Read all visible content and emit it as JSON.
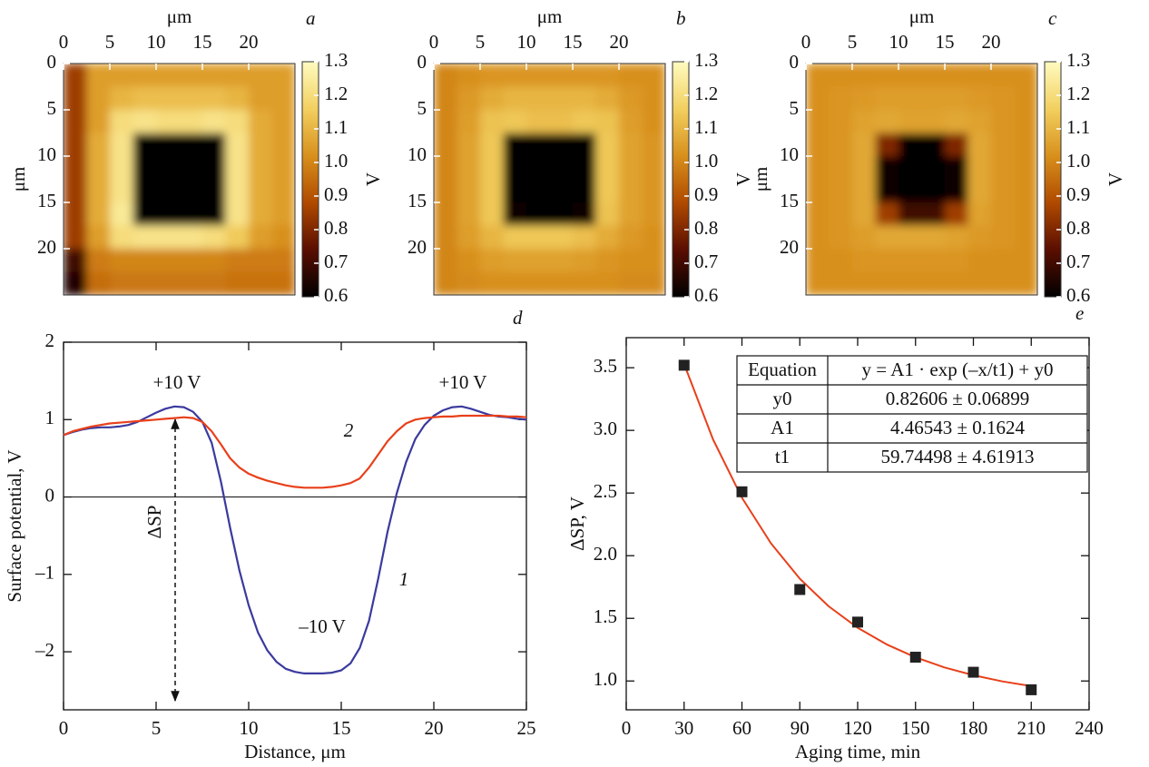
{
  "chart_data": [
    {
      "type": "heatmap",
      "panel": "a",
      "xlabel": "μm",
      "ylabel": "μm",
      "xlim": [
        0,
        25
      ],
      "ylim": [
        0,
        25
      ],
      "xticks": [
        0,
        5,
        10,
        15,
        20
      ],
      "yticks": [
        0,
        5,
        10,
        15,
        20
      ],
      "values": [
        [
          0.85,
          1.05,
          1.05,
          1.05,
          1.05,
          1.05,
          1.05,
          1.05,
          1.05,
          1.05
        ],
        [
          0.85,
          1.05,
          1.1,
          1.12,
          1.12,
          1.12,
          1.12,
          1.1,
          1.05,
          1.05
        ],
        [
          0.85,
          1.05,
          1.2,
          1.22,
          1.2,
          1.2,
          1.22,
          1.2,
          1.08,
          1.05
        ],
        [
          0.85,
          1.08,
          1.22,
          0.6,
          0.6,
          0.6,
          0.6,
          1.22,
          1.08,
          1.05
        ],
        [
          0.85,
          1.08,
          1.22,
          0.6,
          0.6,
          0.6,
          0.6,
          1.22,
          1.08,
          1.05
        ],
        [
          0.85,
          1.08,
          1.22,
          0.6,
          0.6,
          0.6,
          0.6,
          1.22,
          1.08,
          1.05
        ],
        [
          0.85,
          1.08,
          1.24,
          0.6,
          0.6,
          0.6,
          0.6,
          1.22,
          1.08,
          1.05
        ],
        [
          0.85,
          1.05,
          1.2,
          1.22,
          1.22,
          1.22,
          1.2,
          1.15,
          1.05,
          1.02
        ],
        [
          0.7,
          0.98,
          1.0,
          1.0,
          1.0,
          1.0,
          1.0,
          0.98,
          0.98,
          0.98
        ],
        [
          0.65,
          0.95,
          0.97,
          0.97,
          0.97,
          0.97,
          0.97,
          0.96,
          0.96,
          0.96
        ]
      ],
      "colormap": [
        "#000000",
        "#5a0e00",
        "#b04a00",
        "#d8901c",
        "#f2d060",
        "#fffbc0"
      ],
      "clim": [
        0.6,
        1.3
      ],
      "cticks": [
        {
          "value": 0.6,
          "label": "0.6"
        },
        0.7,
        0.8,
        0.9,
        {
          "value": 1,
          "label": "1.0"
        },
        1.1,
        1.2,
        1.3
      ],
      "clabel": "V"
    },
    {
      "type": "heatmap",
      "panel": "b",
      "xlabel": "μm",
      "xlim": [
        0,
        25
      ],
      "ylim": [
        0,
        25
      ],
      "xticks": [
        0,
        5,
        10,
        15,
        20
      ],
      "yticks": [
        0,
        5,
        10,
        15,
        20
      ],
      "values": [
        [
          1.0,
          1.02,
          1.03,
          1.03,
          1.03,
          1.03,
          1.03,
          1.03,
          1.02,
          1.02
        ],
        [
          1.0,
          1.04,
          1.08,
          1.1,
          1.1,
          1.1,
          1.1,
          1.08,
          1.04,
          1.02
        ],
        [
          1.0,
          1.05,
          1.13,
          1.14,
          1.12,
          1.12,
          1.14,
          1.13,
          1.05,
          1.02
        ],
        [
          1.0,
          1.06,
          1.14,
          0.6,
          0.6,
          0.6,
          0.6,
          1.14,
          1.06,
          1.03
        ],
        [
          1.0,
          1.06,
          1.14,
          0.6,
          0.6,
          0.6,
          0.6,
          1.14,
          1.06,
          1.03
        ],
        [
          1.0,
          1.06,
          1.14,
          0.6,
          0.6,
          0.6,
          0.6,
          1.14,
          1.06,
          1.03
        ],
        [
          1.0,
          1.06,
          1.14,
          0.62,
          0.6,
          0.6,
          0.62,
          1.13,
          1.06,
          1.03
        ],
        [
          1.0,
          1.05,
          1.1,
          1.14,
          1.14,
          1.14,
          1.12,
          1.08,
          1.04,
          1.02
        ],
        [
          1.0,
          1.02,
          1.05,
          1.06,
          1.06,
          1.06,
          1.05,
          1.03,
          1.02,
          1.02
        ],
        [
          1.0,
          1.01,
          1.02,
          1.02,
          1.02,
          1.02,
          1.02,
          1.02,
          1.01,
          1.01
        ]
      ],
      "colormap": [
        "#000000",
        "#5a0e00",
        "#b04a00",
        "#d8901c",
        "#f2d060",
        "#fffbc0"
      ],
      "clim": [
        0.6,
        1.3
      ],
      "cticks": [
        {
          "value": 0.6,
          "label": "0.6"
        },
        0.7,
        0.8,
        0.9,
        {
          "value": 1,
          "label": "1.0"
        },
        1.1,
        1.2,
        1.3
      ],
      "clabel": "V"
    },
    {
      "type": "heatmap",
      "panel": "c",
      "xlabel": "μm",
      "ylabel": "μm",
      "xlim": [
        0,
        25
      ],
      "ylim": [
        0,
        25
      ],
      "xticks": [
        0,
        5,
        10,
        15,
        20
      ],
      "yticks": [
        0,
        5,
        10,
        15,
        20
      ],
      "values": [
        [
          1.02,
          1.02,
          1.02,
          1.02,
          1.02,
          1.02,
          1.02,
          1.02,
          1.02,
          1.02
        ],
        [
          1.02,
          1.03,
          1.04,
          1.05,
          1.05,
          1.05,
          1.05,
          1.04,
          1.03,
          1.02
        ],
        [
          1.02,
          1.03,
          1.06,
          1.07,
          1.06,
          1.06,
          1.07,
          1.06,
          1.03,
          1.02
        ],
        [
          1.02,
          1.03,
          1.07,
          0.8,
          0.6,
          0.6,
          0.8,
          1.07,
          1.03,
          1.02
        ],
        [
          1.02,
          1.03,
          1.07,
          0.62,
          0.6,
          0.6,
          0.62,
          1.07,
          1.03,
          1.02
        ],
        [
          1.02,
          1.03,
          1.07,
          0.62,
          0.6,
          0.6,
          0.62,
          1.07,
          1.03,
          1.02
        ],
        [
          1.02,
          1.03,
          1.07,
          0.85,
          0.7,
          0.7,
          0.85,
          1.06,
          1.03,
          1.02
        ],
        [
          1.02,
          1.03,
          1.05,
          1.07,
          1.07,
          1.07,
          1.06,
          1.04,
          1.03,
          1.02
        ],
        [
          1.02,
          1.02,
          1.03,
          1.03,
          1.03,
          1.03,
          1.03,
          1.02,
          1.02,
          1.02
        ],
        [
          1.02,
          1.02,
          1.02,
          1.02,
          1.02,
          1.02,
          1.02,
          1.02,
          1.02,
          1.02
        ]
      ],
      "colormap": [
        "#000000",
        "#5a0e00",
        "#b04a00",
        "#d8901c",
        "#f2d060",
        "#fffbc0"
      ],
      "clim": [
        0.6,
        1.3
      ],
      "cticks": [
        {
          "value": 0.6,
          "label": "0.6"
        },
        0.7,
        0.8,
        0.9,
        {
          "value": 1,
          "label": "1.0"
        },
        1.1,
        1.2,
        1.3
      ],
      "clabel": "V"
    },
    {
      "type": "line",
      "panel": "d",
      "xlabel": "Distance, μm",
      "ylabel": "Surface potential, V",
      "x": [
        0,
        0.5,
        1,
        1.5,
        2,
        2.5,
        3,
        3.5,
        4,
        4.5,
        5,
        5.5,
        6,
        6.5,
        7,
        7.5,
        8,
        8.5,
        9,
        9.5,
        10,
        10.5,
        11,
        11.5,
        12,
        12.5,
        13,
        13.5,
        14,
        14.5,
        15,
        15.5,
        16,
        16.5,
        17,
        17.5,
        18,
        18.5,
        19,
        19.5,
        20,
        20.5,
        21,
        21.5,
        22,
        22.5,
        23,
        23.5,
        24,
        24.5,
        25
      ],
      "series": [
        {
          "name": "1",
          "color": "#3a3a9e",
          "values": [
            0.8,
            0.84,
            0.87,
            0.89,
            0.9,
            0.9,
            0.91,
            0.93,
            0.97,
            1.03,
            1.09,
            1.14,
            1.17,
            1.16,
            1.1,
            0.97,
            0.7,
            0.2,
            -0.4,
            -0.95,
            -1.4,
            -1.75,
            -1.98,
            -2.13,
            -2.22,
            -2.26,
            -2.28,
            -2.28,
            -2.28,
            -2.27,
            -2.24,
            -2.15,
            -1.95,
            -1.6,
            -1.05,
            -0.45,
            0.05,
            0.45,
            0.75,
            0.93,
            1.05,
            1.12,
            1.16,
            1.17,
            1.14,
            1.1,
            1.06,
            1.04,
            1.03,
            1.01,
            1.0
          ]
        },
        {
          "name": "2",
          "color": "#e8401a",
          "values": [
            0.8,
            0.85,
            0.88,
            0.91,
            0.93,
            0.95,
            0.96,
            0.97,
            0.98,
            0.99,
            1.0,
            1.01,
            1.02,
            1.03,
            1.02,
            0.97,
            0.85,
            0.68,
            0.5,
            0.38,
            0.3,
            0.25,
            0.21,
            0.18,
            0.15,
            0.13,
            0.12,
            0.12,
            0.12,
            0.13,
            0.15,
            0.18,
            0.24,
            0.38,
            0.55,
            0.72,
            0.85,
            0.95,
            1.0,
            1.02,
            1.03,
            1.04,
            1.04,
            1.05,
            1.05,
            1.05,
            1.05,
            1.05,
            1.04,
            1.04,
            1.03
          ]
        }
      ],
      "xlim": [
        0,
        25
      ],
      "ylim": [
        -2.75,
        2
      ],
      "xticks": [
        0,
        5,
        10,
        15,
        20,
        25
      ],
      "yticks": [
        {
          "value": -2,
          "label": "–2"
        },
        {
          "value": -1,
          "label": "–1"
        },
        0,
        1,
        2
      ],
      "hline": 0,
      "annotations": [
        "+10 V",
        "+10 V",
        "–10 V",
        "ΔSP"
      ]
    },
    {
      "type": "scatter",
      "panel": "e",
      "xlabel": "Aging time, min",
      "ylabel": "ΔSP, V",
      "x": [
        30,
        60,
        90,
        120,
        150,
        180,
        210
      ],
      "values": [
        3.52,
        2.51,
        1.73,
        1.47,
        1.19,
        1.07,
        0.93
      ],
      "color": "#222222",
      "fit": {
        "color": "#e8401a",
        "x": [
          30,
          45,
          60,
          75,
          90,
          105,
          120,
          135,
          150,
          165,
          180,
          195,
          210
        ],
        "values": [
          3.529,
          2.929,
          2.462,
          2.099,
          1.816,
          1.596,
          1.425,
          1.292,
          1.189,
          1.108,
          1.046,
          0.997,
          0.959
        ]
      },
      "table": [
        [
          "Equation",
          "y = A1 · exp (–x/t1) + y0"
        ],
        [
          "y0",
          "0.82606 ± 0.06899"
        ],
        [
          "A1",
          "4.46543 ± 0.1624"
        ],
        [
          "t1",
          "59.74498 ± 4.61913"
        ]
      ],
      "xlim": [
        0,
        240
      ],
      "ylim": [
        0.77,
        3.74
      ],
      "xticks": [
        0,
        30,
        60,
        90,
        120,
        150,
        180,
        210,
        240
      ],
      "yticks": [
        {
          "value": 1,
          "label": "1.0"
        },
        1.5,
        {
          "value": 2,
          "label": "2.0"
        },
        2.5,
        {
          "value": 3,
          "label": "3.0"
        },
        3.5
      ]
    }
  ]
}
